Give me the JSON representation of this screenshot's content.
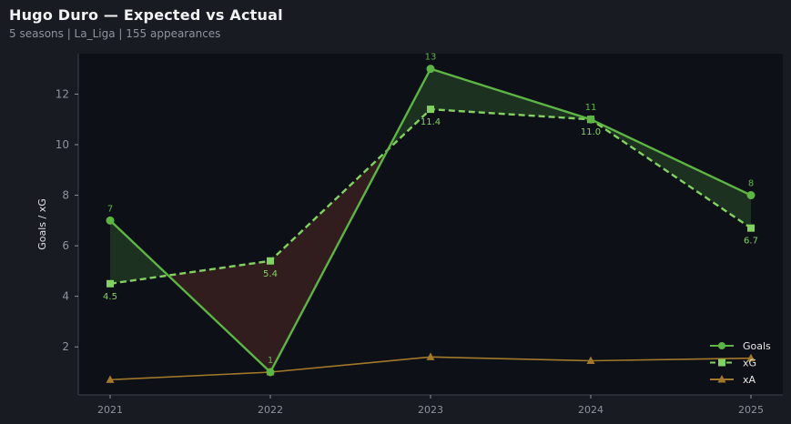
{
  "header": {
    "title": "Hugo Duro — Expected vs Actual",
    "subtitle": "5 seasons | La_Liga | 155 appearances"
  },
  "colors": {
    "background": "#181b22",
    "plot_background": "#0d1016",
    "goals": "#5db544",
    "xg": "#82d162",
    "xa": "#a3782a",
    "overperform_fill": "#1c3120",
    "underperform_fill": "#311d1e",
    "axis": "#3c414b",
    "tick_text": "#8e939c"
  },
  "chart_data": {
    "type": "line",
    "x": [
      "2021",
      "2022",
      "2023",
      "2024",
      "2025"
    ],
    "series": [
      {
        "name": "Goals",
        "values": [
          7,
          1,
          13,
          11,
          8
        ],
        "labels": [
          "7",
          "1",
          "13",
          "11",
          "8"
        ],
        "style": "solid",
        "marker": "circle"
      },
      {
        "name": "xG",
        "values": [
          4.5,
          5.4,
          11.4,
          11.0,
          6.7
        ],
        "labels": [
          "4.5",
          "5.4",
          "11.4",
          "11.0",
          "6.7"
        ],
        "style": "dashed",
        "marker": "square"
      },
      {
        "name": "xA",
        "values": [
          0.7,
          1.0,
          1.6,
          1.45,
          1.55
        ],
        "style": "solid",
        "marker": "triangle"
      }
    ],
    "xlabel": "",
    "ylabel": "Goals / xG",
    "ylim": [
      0.1,
      13.6
    ],
    "yticks": [
      "2",
      "4",
      "6",
      "8",
      "10",
      "12"
    ],
    "grid": false,
    "legend_position": "bottom-right"
  }
}
